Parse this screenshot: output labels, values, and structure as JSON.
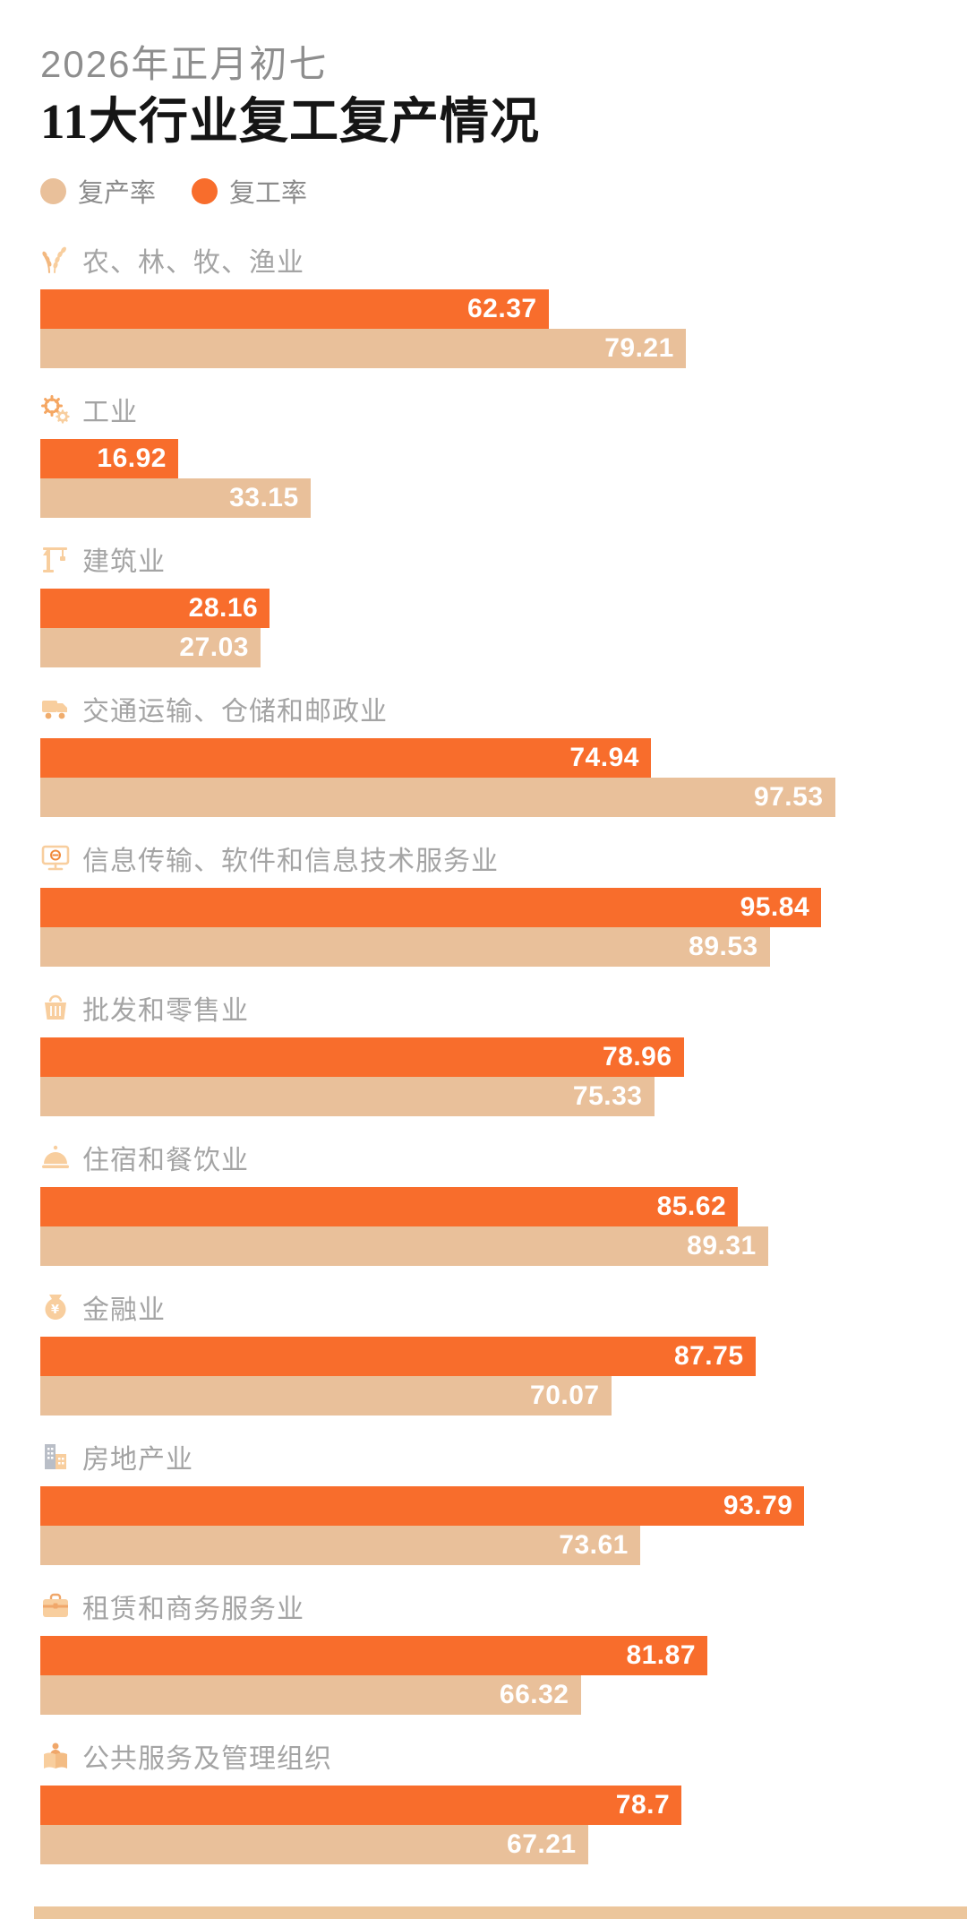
{
  "header": {
    "subtitle": "2026年正月初七",
    "title": "11大行业复工复产情况"
  },
  "legend": {
    "items": [
      {
        "label": "复产率",
        "color": "#E9C09A"
      },
      {
        "label": "复工率",
        "color": "#F86D2C"
      }
    ]
  },
  "chart_data": {
    "type": "bar",
    "orientation": "horizontal",
    "unit": "percent",
    "axis_range": [
      0,
      100
    ],
    "grid": false,
    "legend_position": "top-left",
    "value_labels": "inside-end",
    "categories": [
      "农、林、牧、渔业",
      "工业",
      "建筑业",
      "交通运输、仓储和邮政业",
      "信息传输、软件和信息技术服务业",
      "批发和零售业",
      "住宿和餐饮业",
      "金融业",
      "房地产业",
      "租赁和商务服务业",
      "公共服务及管理组织"
    ],
    "category_icons": [
      "wheat-icon",
      "gear-icon",
      "crane-icon",
      "truck-icon",
      "computer-icon",
      "basket-icon",
      "cloche-icon",
      "moneybag-icon",
      "buildings-icon",
      "briefcase-icon",
      "person-lectern-icon"
    ],
    "series": [
      {
        "name": "复工率",
        "color": "#F86D2C",
        "values": [
          62.37,
          16.92,
          28.16,
          74.94,
          95.84,
          78.96,
          85.62,
          87.75,
          93.79,
          81.87,
          78.7
        ]
      },
      {
        "name": "复产率",
        "color": "#E9C09A",
        "values": [
          79.21,
          33.15,
          27.03,
          97.53,
          89.53,
          75.33,
          89.31,
          70.07,
          73.61,
          66.32,
          67.21
        ]
      }
    ]
  },
  "footer": {
    "accent_color": "#ECC69C"
  }
}
